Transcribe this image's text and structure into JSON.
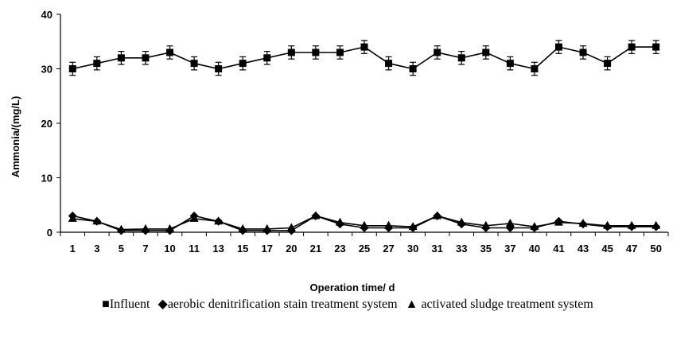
{
  "chart_data": {
    "type": "line",
    "x": [
      "1",
      "3",
      "5",
      "7",
      "10",
      "11",
      "13",
      "15",
      "17",
      "20",
      "21",
      "23",
      "25",
      "27",
      "30",
      "31",
      "33",
      "35",
      "37",
      "40",
      "41",
      "43",
      "45",
      "47",
      "50"
    ],
    "ylabel": "Ammonia/(mg/L)",
    "xlabel": "Operation time/ d",
    "ylim": [
      0,
      40
    ],
    "yticks": [
      0,
      10,
      20,
      30,
      40
    ],
    "grid": false,
    "legend_position": "bottom",
    "series": [
      {
        "name": "Influent",
        "marker": "square",
        "marker_glyph": "■",
        "values": [
          30,
          31,
          32,
          32,
          33,
          31,
          30,
          31,
          32,
          33,
          33,
          33,
          34,
          31,
          30,
          33,
          32,
          33,
          31,
          30,
          34,
          33,
          31,
          34,
          34
        ],
        "error": 1.2
      },
      {
        "name": "aerobic denitrification stain treatment system",
        "marker": "diamond",
        "marker_glyph": "◆",
        "values": [
          3,
          2,
          0.3,
          0.3,
          0.3,
          3,
          2,
          0.3,
          0.3,
          0.3,
          3,
          1.5,
          0.8,
          0.8,
          0.8,
          3,
          1.5,
          0.8,
          0.8,
          0.8,
          2,
          1.5,
          1,
          1,
          1
        ]
      },
      {
        "name": "activated sludge treatment system",
        "marker": "triangle",
        "marker_glyph": "▲",
        "values": [
          2.5,
          2,
          0.5,
          0.6,
          0.6,
          2.5,
          2,
          0.6,
          0.6,
          0.8,
          3,
          1.8,
          1.2,
          1.2,
          1,
          3,
          1.8,
          1.2,
          1.6,
          1,
          1.8,
          1.6,
          1.2,
          1.2,
          1.2
        ]
      }
    ]
  }
}
